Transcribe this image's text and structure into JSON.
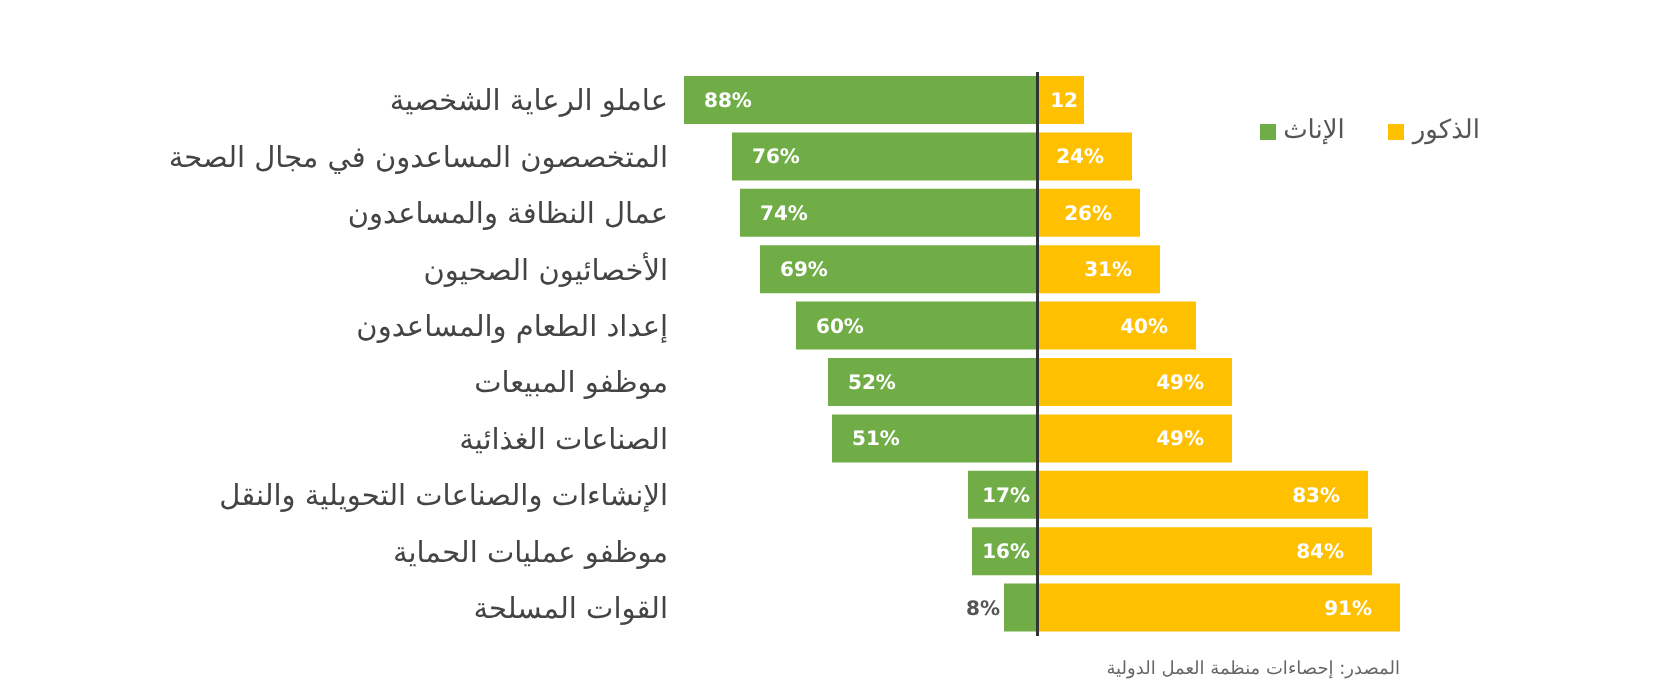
{
  "chart_data": [
    {
      "type": "bar",
      "orientation": "horizontal",
      "categories": [
        "عاملو الرعاية الشخصية",
        "المتخصصون المساعدون في مجال الصحة",
        "عمال النظافة والمساعدون",
        "الأخصائيون الصحيون",
        "إعداد الطعام والمساعدون",
        "موظفو المبيعات",
        "الصناعات الغذائية",
        "الإنشاءات والصناعات التحويلية والنقل",
        "موظفو عمليات الحماية",
        "القوات المسلحة"
      ],
      "series": [
        {
          "name": "الإناث",
          "color": "#70ad47",
          "values": [
            88,
            76,
            74,
            69,
            60,
            52,
            51,
            17,
            16,
            8
          ],
          "value_labels": [
            "88%",
            "76%",
            "74%",
            "69%",
            "60%",
            "52%",
            "51%",
            "17%",
            "16%",
            "8%"
          ]
        }
      ],
      "xlim": [
        88,
        0
      ],
      "tick_labels": "y",
      "legend": "top right"
    },
    {
      "type": "bar",
      "orientation": "horizontal",
      "series": [
        {
          "name": "الذكور",
          "color": "#ffc000",
          "values": [
            12,
            24,
            26,
            31,
            40,
            49,
            49,
            83,
            84,
            91
          ],
          "value_labels": [
            "12",
            "24%",
            "26%",
            "31%",
            "40%",
            "49%",
            "49%",
            "83%",
            "84%",
            "91%"
          ]
        }
      ],
      "xlim": [
        0,
        91
      ],
      "tick_labels": false,
      "legend": "top right",
      "annotations": [
        "المصدر: إحصاءات منظمة العمل الدولية"
      ]
    }
  ]
}
